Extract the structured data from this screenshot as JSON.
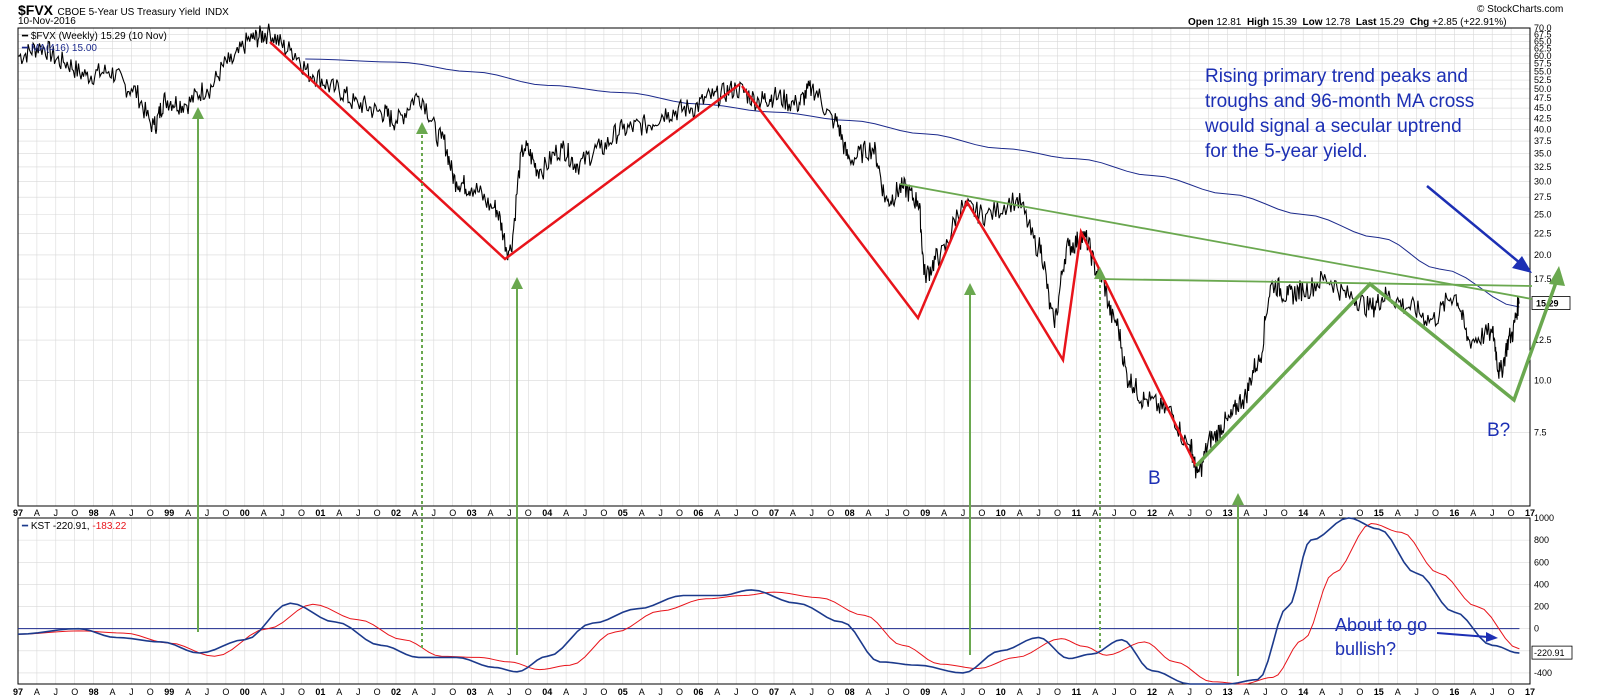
{
  "header": {
    "symbol": "$FVX",
    "name": "CBOE 5-Year US Treasury Yield",
    "exchange": "INDX",
    "date": "10-Nov-2016",
    "open_label": "Open",
    "open": "12.81",
    "high_label": "High",
    "high": "15.39",
    "low_label": "Low",
    "low": "12.78",
    "last_label": "Last",
    "last": "15.29",
    "chg_label": "Chg",
    "chg": "+2.85 (+22.91%)",
    "copyright": "© StockCharts.com"
  },
  "legend": {
    "price": "$FVX (Weekly) 15.29 (10 Nov)",
    "ma": "MA(416) 15.00",
    "kst_label": "KST",
    "kst_value": "-220.91,",
    "kst_signal": "-183.22"
  },
  "annotations": {
    "main_text": [
      "Rising primary trend peaks and",
      "troughs and 96-month MA cross",
      "would signal a secular uptrend",
      "for the 5-year yield."
    ],
    "b_label": "B",
    "b2_label": "B?",
    "kst_text": [
      "About to go",
      "bullish?"
    ]
  },
  "colors": {
    "price": "#000000",
    "ma": "#1c2a8c",
    "trend_red": "#e8141b",
    "trend_green": "#6aa84f",
    "kst": "#1c3a8c",
    "kst_signal": "#e8141b",
    "annotation": "#1c2fb4",
    "grid": "#d9d9d9"
  },
  "chart_data": [
    {
      "type": "line",
      "y_scale": "log",
      "ylim": [
        5,
        70
      ],
      "y_ticks": [
        "70.0",
        "67.5",
        "65.0",
        "62.5",
        "60.0",
        "57.5",
        "55.0",
        "52.5",
        "50.0",
        "47.5",
        "45.0",
        "42.5",
        "40.0",
        "37.5",
        "35.0",
        "32.5",
        "30.0",
        "27.5",
        "25.0",
        "22.5",
        "20.0",
        "17.5",
        "15.0",
        "12.5",
        "10.0",
        "7.5"
      ],
      "last_value_label": "15.29",
      "x_labels": [
        "97",
        "A",
        "J",
        "O",
        "98",
        "A",
        "J",
        "O",
        "99",
        "A",
        "J",
        "O",
        "00",
        "A",
        "J",
        "O",
        "01",
        "A",
        "J",
        "O",
        "02",
        "A",
        "J",
        "O",
        "03",
        "A",
        "J",
        "O",
        "04",
        "A",
        "J",
        "O",
        "05",
        "A",
        "J",
        "O",
        "06",
        "A",
        "J",
        "O",
        "07",
        "A",
        "J",
        "O",
        "08",
        "A",
        "J",
        "O",
        "09",
        "A",
        "J",
        "O",
        "10",
        "A",
        "J",
        "O",
        "11",
        "A",
        "J",
        "O",
        "12",
        "A",
        "J",
        "O",
        "13",
        "A",
        "J",
        "O",
        "14",
        "A",
        "J",
        "O",
        "15",
        "A",
        "J",
        "O",
        "16",
        "A",
        "J",
        "O",
        "17"
      ],
      "series": [
        {
          "name": "$FVX (Weekly)",
          "x": [
            1997.0,
            1997.3,
            1997.6,
            1997.9,
            1998.2,
            1998.5,
            1998.8,
            1998.95,
            1999.2,
            1999.5,
            1999.8,
            2000.1,
            2000.3,
            2000.6,
            2000.9,
            2001.2,
            2001.5,
            2001.8,
            2002.0,
            2002.3,
            2002.6,
            2002.8,
            2003.0,
            2003.3,
            2003.5,
            2003.7,
            2003.9,
            2004.2,
            2004.4,
            2004.7,
            2005.0,
            2005.3,
            2005.6,
            2005.9,
            2006.2,
            2006.5,
            2006.8,
            2007.0,
            2007.3,
            2007.5,
            2007.8,
            2008.0,
            2008.3,
            2008.5,
            2008.7,
            2008.9,
            2009.0,
            2009.2,
            2009.5,
            2009.8,
            2010.2,
            2010.5,
            2010.7,
            2010.9,
            2011.1,
            2011.3,
            2011.5,
            2011.7,
            2011.9,
            2012.2,
            2012.5,
            2012.6,
            2012.8,
            2013.0,
            2013.2,
            2013.4,
            2013.6,
            2013.8,
            2014.0,
            2014.3,
            2014.6,
            2014.9,
            2015.1,
            2015.4,
            2015.7,
            2016.0,
            2016.2,
            2016.5,
            2016.6,
            2016.75,
            2016.86
          ],
          "values": [
            60,
            63,
            58,
            54,
            55,
            50,
            41,
            47,
            46,
            50,
            58,
            66,
            68,
            62,
            54,
            50,
            46,
            44,
            42,
            48,
            38,
            30,
            29,
            26,
            20.5,
            36,
            32,
            36,
            33,
            36,
            40,
            41,
            44,
            45,
            48,
            50,
            47,
            48,
            46,
            50,
            42,
            34,
            36,
            27,
            29,
            27,
            18,
            20,
            26,
            25,
            27,
            21,
            14,
            21,
            22,
            18,
            14,
            10,
            9,
            8.5,
            7,
            6,
            7.3,
            8,
            9,
            11,
            17,
            16,
            16.5,
            17.5,
            16,
            15,
            16,
            15,
            14,
            16,
            12.5,
            13,
            10.5,
            12.8,
            15.29
          ]
        },
        {
          "name": "MA(416)",
          "x": [
            2000.8,
            2002.0,
            2003.0,
            2004.0,
            2005.0,
            2006.0,
            2007.0,
            2008.0,
            2009.0,
            2010.0,
            2011.0,
            2012.0,
            2013.0,
            2014.0,
            2015.0,
            2015.8,
            2016.86
          ],
          "values": [
            59,
            58,
            55,
            51,
            49,
            46,
            44,
            42,
            39,
            36,
            34,
            31,
            28,
            25,
            22,
            18.5,
            15.0
          ]
        }
      ]
    },
    {
      "type": "line",
      "ylim": [
        -500,
        1000
      ],
      "y_ticks": [
        "1000",
        "800",
        "600",
        "400",
        "200",
        "0",
        "-200",
        "-400"
      ],
      "last_value_label": "-220.91",
      "series": [
        {
          "name": "KST",
          "x": [
            1997.0,
            1997.8,
            1998.3,
            1998.9,
            1999.4,
            2000.0,
            2000.6,
            2001.2,
            2001.8,
            2002.3,
            2002.8,
            2003.3,
            2003.6,
            2004.0,
            2004.6,
            2005.2,
            2005.8,
            2006.3,
            2006.7,
            2007.3,
            2007.9,
            2008.4,
            2008.9,
            2009.5,
            2010.0,
            2010.5,
            2010.9,
            2011.2,
            2011.6,
            2012.0,
            2012.5,
            2013.0,
            2013.4,
            2013.8,
            2014.1,
            2014.6,
            2015.0,
            2015.5,
            2016.0,
            2016.5,
            2016.86
          ],
          "values": [
            -50,
            0,
            -80,
            -120,
            -220,
            -100,
            230,
            60,
            -150,
            -260,
            -260,
            -350,
            -390,
            -250,
            50,
            180,
            300,
            300,
            350,
            230,
            60,
            -300,
            -330,
            -400,
            -200,
            -80,
            -270,
            -230,
            -100,
            -380,
            -500,
            -500,
            -460,
            200,
            800,
            1000,
            900,
            500,
            150,
            -150,
            -220.91
          ]
        },
        {
          "name": "signal",
          "x": [
            1997.0,
            1997.8,
            1998.4,
            1999.0,
            1999.6,
            2000.3,
            2000.9,
            2001.5,
            2002.1,
            2002.6,
            2003.1,
            2003.5,
            2003.9,
            2004.3,
            2004.9,
            2005.5,
            2006.1,
            2006.6,
            2007.0,
            2007.6,
            2008.2,
            2008.7,
            2009.2,
            2009.7,
            2010.2,
            2010.8,
            2011.1,
            2011.4,
            2011.9,
            2012.3,
            2012.8,
            2013.2,
            2013.6,
            2014.0,
            2014.4,
            2014.9,
            2015.3,
            2015.8,
            2016.3,
            2016.86
          ],
          "values": [
            -50,
            -20,
            -40,
            -130,
            -250,
            0,
            220,
            80,
            -100,
            -250,
            -260,
            -300,
            -370,
            -330,
            -30,
            160,
            270,
            300,
            330,
            280,
            120,
            -150,
            -320,
            -360,
            -260,
            -90,
            -160,
            -240,
            -120,
            -300,
            -480,
            -500,
            -440,
            -100,
            500,
            950,
            870,
            500,
            200,
            -183.22
          ]
        },
        {
          "name": "zero",
          "x": [
            1997.0,
            2016.86
          ],
          "values": [
            0,
            0
          ]
        }
      ]
    }
  ]
}
